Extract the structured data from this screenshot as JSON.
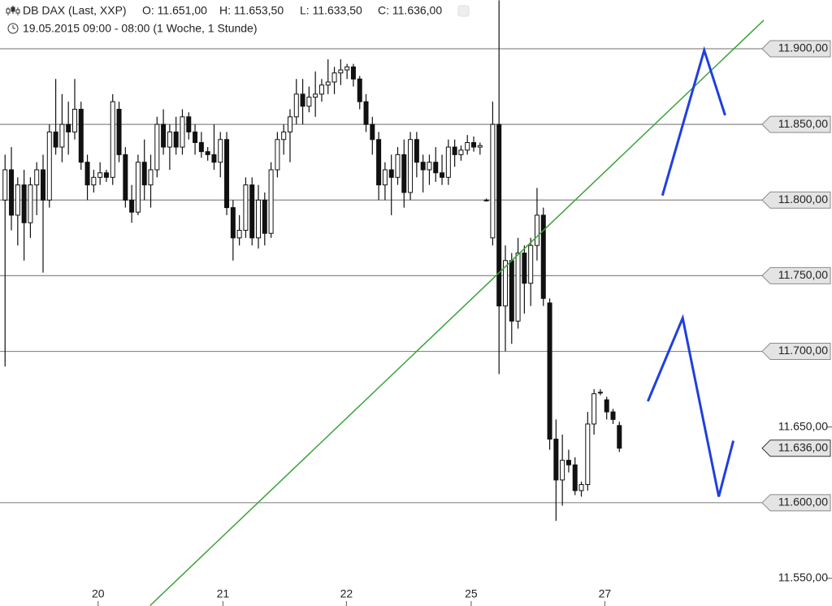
{
  "chart_data": {
    "type": "candlestick",
    "title": "DB DAX (Last, XXP)",
    "ohlc_labels": [
      "O: 11.651,00",
      "H: 11.653,50",
      "L: 11.633,50",
      "C: 11.636,00"
    ],
    "subtitle": "19.05.2015 09:00 - 08:00 (1 Woche, 1 Stunde)",
    "x": [
      0,
      1,
      2,
      3,
      4,
      5,
      6,
      7,
      8,
      9,
      10,
      11,
      12,
      13,
      14,
      15,
      16,
      17,
      18,
      19,
      20,
      21,
      22,
      23,
      24,
      25,
      26,
      27,
      28,
      29,
      30,
      31,
      32,
      33,
      34,
      35,
      36,
      37,
      38,
      39,
      40,
      41,
      42,
      43,
      44,
      45,
      46,
      47,
      48,
      49,
      50,
      51,
      52,
      53,
      54,
      55,
      56,
      57,
      58,
      59,
      60,
      61,
      62,
      63,
      64,
      65,
      66,
      67,
      68,
      69,
      70,
      71,
      72,
      73,
      74,
      75,
      76,
      77,
      78,
      79,
      80,
      81,
      82,
      83,
      84,
      85,
      86,
      87,
      88,
      89,
      90,
      91,
      92,
      93,
      94,
      95,
      96,
      97
    ],
    "open": [
      11800,
      11820,
      11790,
      11810,
      11785,
      11810,
      11820,
      11800,
      11845,
      11835,
      11850,
      11845,
      11860,
      11825,
      11810,
      11815,
      11818,
      11815,
      11860,
      11830,
      11800,
      11792,
      11825,
      11810,
      11820,
      11850,
      11835,
      11845,
      11835,
      11855,
      11845,
      11838,
      11832,
      11830,
      11825,
      11840,
      11795,
      11775,
      11780,
      11810,
      11775,
      11800,
      11778,
      11820,
      11840,
      11845,
      11855,
      11870,
      11862,
      11868,
      11870,
      11876,
      11878,
      11884,
      11886,
      11888,
      11880,
      11865,
      11850,
      11840,
      11810,
      11820,
      11815,
      11830,
      11805,
      11840,
      11825,
      11820,
      11825,
      11818,
      11815,
      11835,
      11830,
      11833,
      11838,
      11835,
      11800,
      11775,
      11850,
      11730,
      11760,
      11720,
      11765,
      11745,
      11770,
      11790,
      11732,
      11642,
      11615,
      11628,
      11625,
      11608,
      11612,
      11652,
      11673,
      11668,
      11660,
      11651
    ],
    "high": [
      11830,
      11835,
      11815,
      11820,
      11815,
      11825,
      11830,
      11850,
      11880,
      11870,
      11865,
      11880,
      11865,
      11830,
      11820,
      11825,
      11820,
      11870,
      11865,
      11835,
      11810,
      11830,
      11840,
      11830,
      11855,
      11860,
      11850,
      11855,
      11860,
      11858,
      11850,
      11845,
      11835,
      11850,
      11845,
      11845,
      11800,
      11790,
      11815,
      11815,
      11810,
      11805,
      11825,
      11845,
      11850,
      11860,
      11880,
      11880,
      11875,
      11885,
      11880,
      11893,
      11888,
      11893,
      11890,
      11890,
      11882,
      11870,
      11855,
      11845,
      11825,
      11830,
      11835,
      11840,
      11845,
      11845,
      11830,
      11830,
      11835,
      11830,
      11840,
      11840,
      11836,
      11843,
      11842,
      11838,
      11801,
      11865,
      11932,
      11770,
      11765,
      11775,
      11770,
      11775,
      11808,
      11795,
      11735,
      11655,
      11645,
      11635,
      11630,
      11614,
      11660,
      11675,
      11675,
      11670,
      11662,
      11653.5
    ],
    "low": [
      11690,
      11780,
      11770,
      11760,
      11775,
      11790,
      11752,
      11795,
      11830,
      11825,
      11830,
      11840,
      11820,
      11800,
      11805,
      11810,
      11812,
      11810,
      11825,
      11795,
      11785,
      11790,
      11800,
      11795,
      11815,
      11830,
      11820,
      11830,
      11830,
      11840,
      11830,
      11828,
      11826,
      11820,
      11815,
      11790,
      11760,
      11770,
      11775,
      11770,
      11768,
      11770,
      11775,
      11815,
      11830,
      11825,
      11850,
      11850,
      11858,
      11855,
      11865,
      11870,
      11870,
      11876,
      11880,
      11875,
      11860,
      11845,
      11830,
      11800,
      11800,
      11790,
      11810,
      11795,
      11800,
      11815,
      11805,
      11810,
      11812,
      11810,
      11810,
      11822,
      11826,
      11830,
      11832,
      11830,
      11799,
      11770,
      11685,
      11700,
      11705,
      11715,
      11725,
      11730,
      11760,
      11730,
      11635,
      11588,
      11598,
      11620,
      11605,
      11604,
      11608,
      11645,
      11671,
      11655,
      11652,
      11633.5
    ],
    "close": [
      11820,
      11790,
      11810,
      11785,
      11810,
      11820,
      11800,
      11845,
      11835,
      11850,
      11845,
      11860,
      11825,
      11810,
      11815,
      11818,
      11815,
      11865,
      11830,
      11800,
      11792,
      11825,
      11810,
      11820,
      11850,
      11835,
      11845,
      11835,
      11855,
      11845,
      11838,
      11832,
      11830,
      11825,
      11840,
      11795,
      11775,
      11780,
      11810,
      11775,
      11800,
      11778,
      11820,
      11840,
      11845,
      11855,
      11870,
      11862,
      11868,
      11870,
      11876,
      11878,
      11884,
      11886,
      11888,
      11880,
      11865,
      11850,
      11840,
      11810,
      11820,
      11815,
      11830,
      11805,
      11840,
      11825,
      11820,
      11825,
      11818,
      11815,
      11835,
      11830,
      11833,
      11838,
      11835,
      11836,
      11800,
      11850,
      11730,
      11760,
      11720,
      11765,
      11745,
      11770,
      11790,
      11735,
      11642,
      11615,
      11628,
      11625,
      11608,
      11612,
      11652,
      11672,
      11673,
      11660,
      11655,
      11636
    ],
    "xlim": [
      -0.8,
      119.8
    ],
    "xticks": [
      {
        "value": 14.7,
        "label": "20"
      },
      {
        "value": 34.4,
        "label": "21"
      },
      {
        "value": 53.9,
        "label": "22"
      },
      {
        "value": 73.6,
        "label": "25"
      },
      {
        "value": 94.7,
        "label": "27"
      }
    ],
    "ylim": [
      11543,
      11932.2
    ],
    "yticks": [
      {
        "value": 11550,
        "label": "11.550,00"
      },
      {
        "value": 11600,
        "label": "11.600,00"
      },
      {
        "value": 11650,
        "label": "11.650,00"
      },
      {
        "value": 11700,
        "label": "11.700,00"
      },
      {
        "value": 11750,
        "label": "11.750,00"
      },
      {
        "value": 11800,
        "label": "11.800,00"
      },
      {
        "value": 11850,
        "label": "11.850,00"
      },
      {
        "value": 11900,
        "label": "11.900,00"
      }
    ],
    "horizontal_lines": [
      11600,
      11700,
      11750,
      11800,
      11850,
      11900
    ],
    "last_price": {
      "value": 11636,
      "label": "11.636,00"
    },
    "drawings": [
      {
        "color": "#3aa33a",
        "x": [
          22.9,
          123.1
        ],
        "y": [
          11532,
          11932
        ]
      },
      {
        "color": "#1f3fe0",
        "x": [
          103.8,
          110.4,
          113.7
        ],
        "y": [
          11803,
          11899,
          11856
        ]
      },
      {
        "color": "#1f3fe0",
        "x": [
          101.5,
          107.0,
          112.7,
          115.0
        ],
        "y": [
          11667,
          11722,
          11604,
          11641
        ]
      }
    ]
  }
}
